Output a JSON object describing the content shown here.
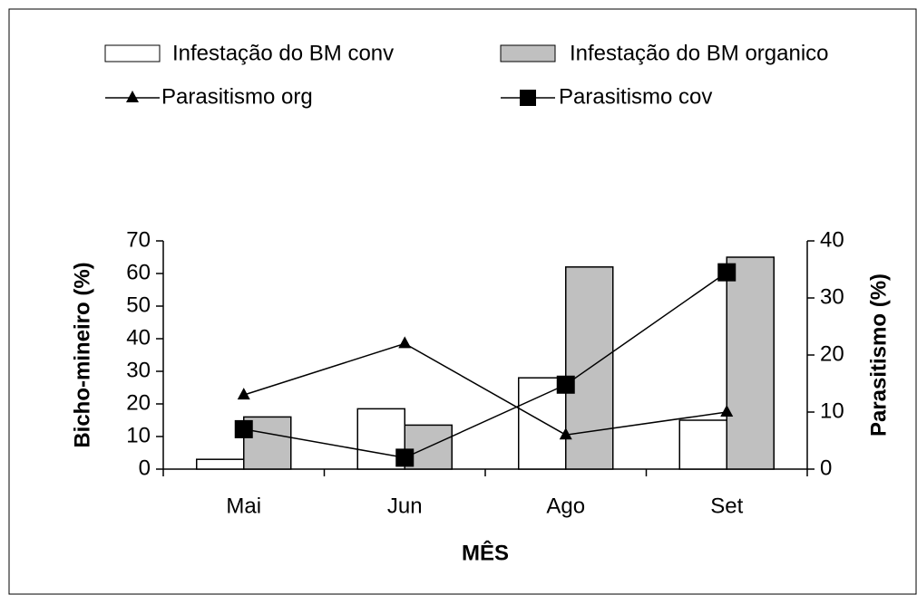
{
  "chart_data": {
    "type": "bar_line",
    "xlabel": "MÊS",
    "ylabel": "Bicho-mineiro (%)",
    "y2label": "Parasitismo (%)",
    "categories": [
      "Mai",
      "Jun",
      "Ago",
      "Set"
    ],
    "series": [
      {
        "name": "Infestação do BM conv",
        "type": "bar",
        "color": "#ffffff",
        "values": [
          3,
          18.5,
          28,
          15
        ]
      },
      {
        "name": "Infestação do BM organico",
        "type": "bar",
        "color": "#c0c0c0",
        "values": [
          16,
          13.5,
          62,
          65
        ]
      },
      {
        "name": "Parasitismo org",
        "type": "line",
        "marker": "triangle",
        "color": "#000000",
        "axis": "y2",
        "values": [
          13,
          22,
          6,
          10
        ]
      },
      {
        "name": "Parasitismo cov",
        "type": "line",
        "marker": "square",
        "color": "#000000",
        "axis": "y2",
        "values": [
          7,
          2,
          14.8,
          34.5
        ]
      }
    ],
    "ylim": [
      0,
      70
    ],
    "yticks": [
      0,
      10,
      20,
      30,
      40,
      50,
      60,
      70
    ],
    "y2lim": [
      0,
      40
    ],
    "y2ticks": [
      0,
      10,
      20,
      30,
      40
    ],
    "grid": false,
    "legend": "top"
  }
}
